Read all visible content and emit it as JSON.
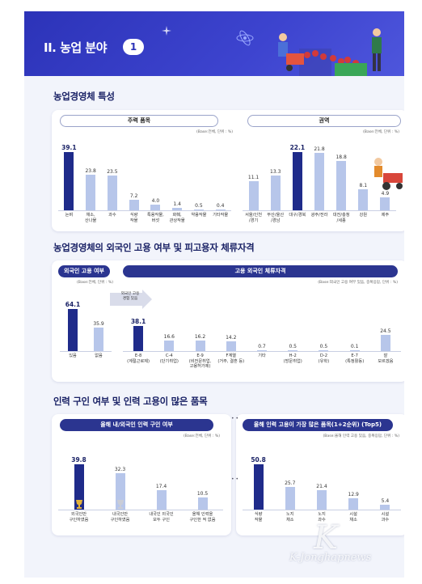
{
  "header": {
    "title": "II. 농업 분야",
    "number": "1"
  },
  "section1": {
    "title": "농업경영체 특성",
    "crop": {
      "label": "주력 품목",
      "base": "(Base:전체, 단위 : %)",
      "items": [
        {
          "label": "논벼",
          "value": "39.1",
          "v": 39.1,
          "hi": true
        },
        {
          "label": "채소,\n산나물",
          "value": "23.8",
          "v": 23.8
        },
        {
          "label": "과수",
          "value": "23.5",
          "v": 23.5
        },
        {
          "label": "식량\n작물",
          "value": "7.2",
          "v": 7.2
        },
        {
          "label": "특용작물,\n버섯",
          "value": "4.0",
          "v": 4.0
        },
        {
          "label": "화훼,\n관상작물",
          "value": "1.4",
          "v": 1.4
        },
        {
          "label": "약용작물",
          "value": "0.5",
          "v": 0.5
        },
        {
          "label": "기타작물",
          "value": "0.4",
          "v": 0.4
        }
      ]
    },
    "region": {
      "label": "권역",
      "base": "(Base:전체, 단위 : %)",
      "items": [
        {
          "label": "서울/인천\n/경기",
          "value": "11.1",
          "v": 11.1
        },
        {
          "label": "부산/울산\n/경남",
          "value": "13.3",
          "v": 13.3
        },
        {
          "label": "대구/경북",
          "value": "22.1",
          "v": 22.1,
          "hi": true
        },
        {
          "label": "광주/전라",
          "value": "21.8",
          "v": 21.8
        },
        {
          "label": "대전/충청\n/세종",
          "value": "18.8",
          "v": 18.8
        },
        {
          "label": "강원",
          "value": "8.1",
          "v": 8.1
        },
        {
          "label": "제주",
          "value": "4.9",
          "v": 4.9
        }
      ]
    }
  },
  "section2": {
    "title": "농업경영체의 외국인 고용 여부 및 피고용자 체류자격",
    "employ": {
      "label": "외국인 고용 여부",
      "base": "(Base:전체, 단위 : %)",
      "items": [
        {
          "label": "있음",
          "value": "64.1",
          "v": 64.1,
          "hi": true
        },
        {
          "label": "없음",
          "value": "35.9",
          "v": 35.9
        }
      ]
    },
    "visa": {
      "label": "고용 외국인 체류자격",
      "base": "(Base:외국인 고용 여부 있음, 중복응답, 단위 : %)",
      "callout": "외국인 고용\n경험 있음",
      "items": [
        {
          "label": "E-8\n(계절근로제)",
          "value": "38.1",
          "v": 38.1,
          "hi": true
        },
        {
          "label": "C-4\n(단기취업)",
          "value": "16.6",
          "v": 16.6
        },
        {
          "label": "E-9\n(비전문취업,\n고용허가제)",
          "value": "16.2",
          "v": 16.2
        },
        {
          "label": "F계열\n(거주, 결혼 등)",
          "value": "14.2",
          "v": 14.2
        },
        {
          "label": "기타",
          "value": "0.7",
          "v": 0.7
        },
        {
          "label": "H-2\n(방문취업)",
          "value": "0.5",
          "v": 0.5
        },
        {
          "label": "D-2\n(유학)",
          "value": "0.5",
          "v": 0.5
        },
        {
          "label": "E-7\n(특정활동)",
          "value": "0.1",
          "v": 0.1
        },
        {
          "label": "잘\n모르겠음",
          "value": "24.5",
          "v": 24.5
        }
      ]
    }
  },
  "section3": {
    "title": "인력 구인 여부 및 인력 고용이 많은 품목",
    "recruit": {
      "label": "올해 내/외국인 인력 구인 여부",
      "base": "(Base:전체, 단위 : %)",
      "items": [
        {
          "label": "외국인만\n구인하였음",
          "value": "39.8",
          "v": 39.8,
          "hi": true
        },
        {
          "label": "내국인만\n구인하였음",
          "value": "32.3",
          "v": 32.3
        },
        {
          "label": "내국인 외국인\n모두 구인",
          "value": "17.4",
          "v": 17.4
        },
        {
          "label": "올해 인력을\n구인한 적 없음",
          "value": "10.5",
          "v": 10.5
        }
      ]
    },
    "topitems": {
      "label": "올해 인력 고용이 가장 많은 품목(1+2순위) (Top5)",
      "base": "(Base:올해 인력 고용 있음, 중복응답, 단위 : %)",
      "items": [
        {
          "label": "식량\n작물",
          "value": "50.8",
          "v": 50.8,
          "hi": true
        },
        {
          "label": "노지\n채소",
          "value": "25.7",
          "v": 25.7
        },
        {
          "label": "노지\n과수",
          "value": "21.4",
          "v": 21.4
        },
        {
          "label": "시설\n채소",
          "value": "12.9",
          "v": 12.9
        },
        {
          "label": "시설\n과수",
          "value": "5.4",
          "v": 5.4
        }
      ]
    }
  },
  "watermark": {
    "text": "K-Jonghapnews",
    "letter": "K"
  },
  "colors": {
    "navy": "#1f2b8a",
    "light": "#b7c6ea",
    "banner": "#2c33b8"
  }
}
